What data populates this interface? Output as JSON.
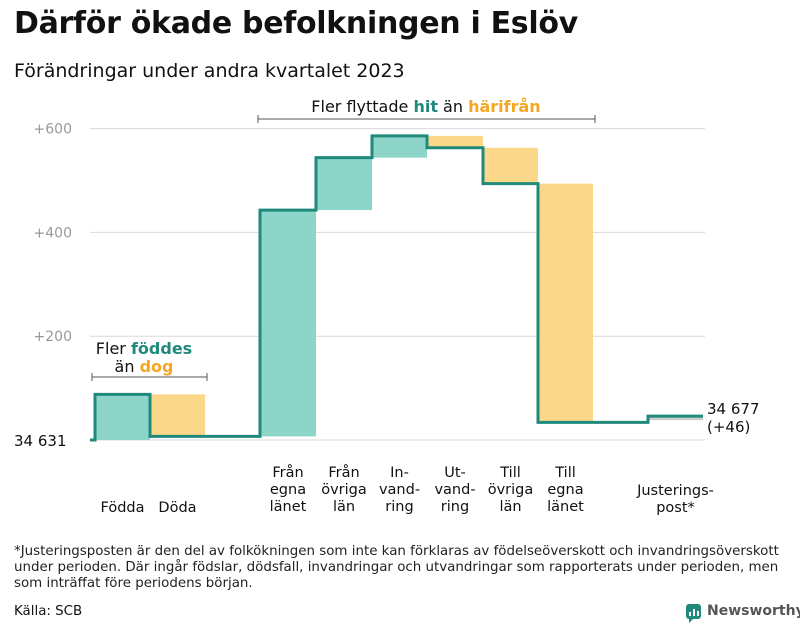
{
  "title": "Därför ökade befolkningen i Eslöv",
  "subtitle": "Förändringar under andra kvartalet 2023",
  "chart_data": {
    "type": "waterfall",
    "start_value": 34631,
    "start_label": "34  631",
    "end_label_lines": [
      "34 677",
      "(+46)"
    ],
    "y_axis": {
      "ticks": [
        {
          "value": 0,
          "label": ""
        },
        {
          "value": 200,
          "label": "+200"
        },
        {
          "value": 400,
          "label": "+400"
        },
        {
          "value": 600,
          "label": "+600"
        }
      ],
      "range": [
        0,
        620
      ]
    },
    "steps": [
      {
        "name": "fodda",
        "label_lines": [
          "Födda"
        ],
        "change": 88,
        "kind": "in"
      },
      {
        "name": "doda",
        "label_lines": [
          "Döda"
        ],
        "change": -81,
        "kind": "out"
      },
      {
        "name": "fran-egna-lanet",
        "label_lines": [
          "Från",
          "egna",
          "länet"
        ],
        "change": 436,
        "kind": "in"
      },
      {
        "name": "fran-ovriga-lan",
        "label_lines": [
          "Från",
          "övriga",
          "län"
        ],
        "change": 101,
        "kind": "in"
      },
      {
        "name": "invandring",
        "label_lines": [
          "In-",
          "vand-",
          "ring"
        ],
        "change": 42,
        "kind": "in"
      },
      {
        "name": "utvandring",
        "label_lines": [
          "Ut-",
          "vand-",
          "ring"
        ],
        "change": -23,
        "kind": "out"
      },
      {
        "name": "till-ovriga-lan",
        "label_lines": [
          "Till",
          "övriga",
          "län"
        ],
        "change": -69,
        "kind": "out"
      },
      {
        "name": "till-egna-lanet",
        "label_lines": [
          "Till",
          "egna",
          "länet"
        ],
        "change": -460,
        "kind": "out"
      },
      {
        "name": "justeringspost",
        "label_lines": [
          "Justerings-",
          "post*"
        ],
        "change": 12,
        "kind": "adjust"
      }
    ],
    "annotations": {
      "births": {
        "line1": "Fler ",
        "highlight1": "föddes",
        "line2": "än ",
        "highlight2": "dog"
      },
      "migration": {
        "prefix": "Fler flyttade ",
        "highlight1": "hit",
        "middle": " än ",
        "highlight2": "härifrån"
      }
    },
    "colors": {
      "in": "#8dd5c9",
      "out": "#fbd889",
      "line": "#1f8a7c",
      "in_text": "#1f8a7c",
      "out_text": "#f5a623",
      "adjust": "#cccccc",
      "grid": "#d9d9d9",
      "tick": "#999999"
    }
  },
  "footnote": "*Justeringsposten är den del av folkökningen som inte kan förklaras av födelseöverskott och invandringsöverskott under perioden. Där ingår födslar, dödsfall, invandringar och utvandringar som rapporterats under perioden, men som inträffat före periodens början.",
  "source": "Källa: SCB",
  "brand": "Newsworthy"
}
